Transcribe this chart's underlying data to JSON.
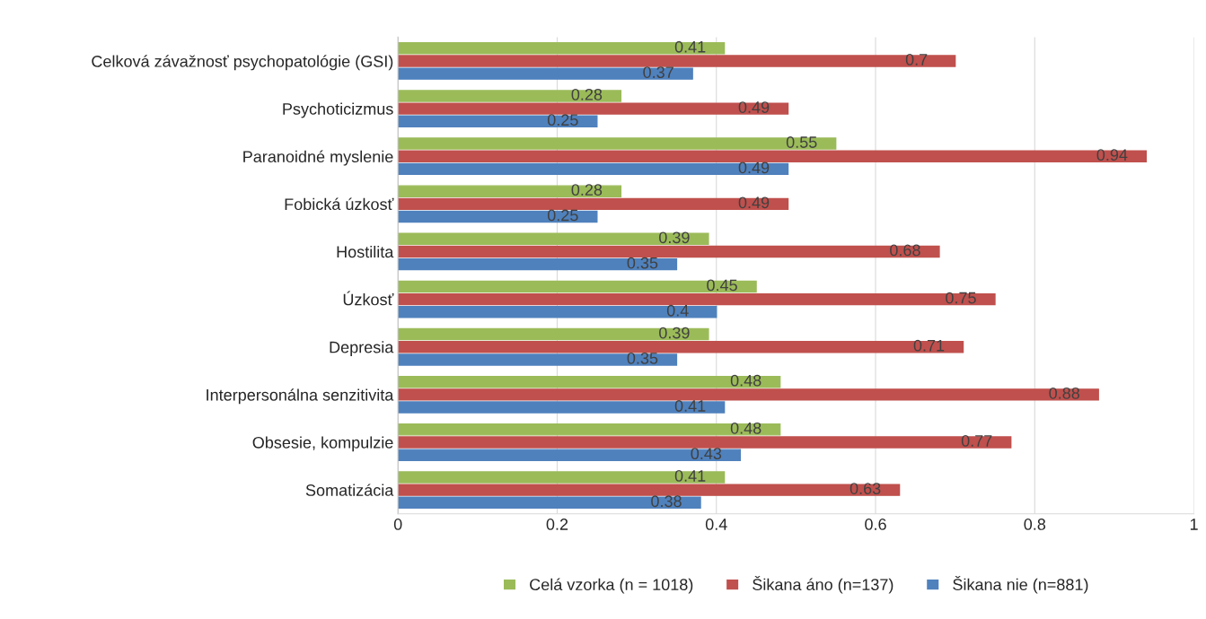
{
  "chart_data": {
    "type": "bar",
    "orientation": "horizontal",
    "categories": [
      "Celková závažnosť psychopatológie (GSI)",
      "Psychoticizmus",
      "Paranoidné myslenie",
      "Fobická úzkosť",
      "Hostilita",
      "Úzkosť",
      "Depresia",
      "Interpersonálna senzitivita",
      "Obsesie, kompulzie",
      "Somatizácia"
    ],
    "series": [
      {
        "name": "Celá vzorka (n = 1018)",
        "color": "#9bbb59",
        "values": [
          0.41,
          0.28,
          0.55,
          0.28,
          0.39,
          0.45,
          0.39,
          0.48,
          0.48,
          0.41
        ]
      },
      {
        "name": "Šikana áno (n=137)",
        "color": "#c0504d",
        "values": [
          0.7,
          0.49,
          0.94,
          0.49,
          0.68,
          0.75,
          0.71,
          0.88,
          0.77,
          0.63
        ]
      },
      {
        "name": "Šikana nie (n=881)",
        "color": "#4f81bd",
        "values": [
          0.37,
          0.25,
          0.49,
          0.25,
          0.35,
          0.4,
          0.35,
          0.41,
          0.43,
          0.38
        ]
      }
    ],
    "xlim": [
      0,
      1
    ],
    "xticks": [
      0,
      0.2,
      0.4,
      0.6,
      0.8,
      1
    ],
    "grid": "x",
    "legend": "bottom",
    "data_labels": true
  }
}
